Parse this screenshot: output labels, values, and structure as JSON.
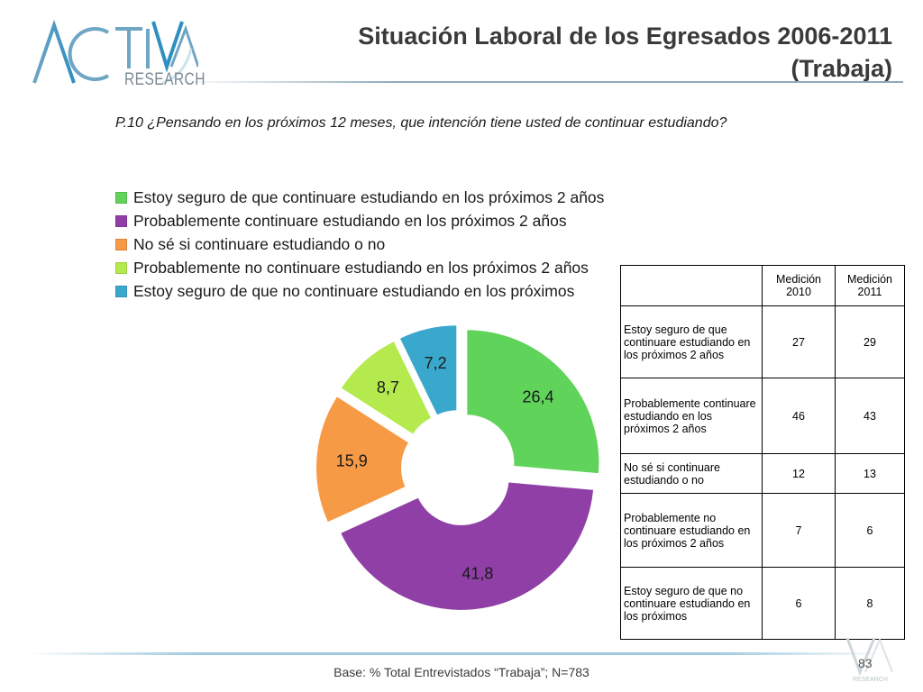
{
  "logo": {
    "wordmark": "RESEARCH"
  },
  "title": "Situación Laboral de los Egresados 2006-2011 (Trabaja)",
  "question": "P.10 ¿Pensando en los próximos 12 meses, que intención tiene usted de continuar estudiando?",
  "footer": "Base: % Total Entrevistados “Trabaja”; N=783",
  "page_number": "83",
  "corner_logo": {
    "wordmark": "RESEARCH"
  },
  "colors": {
    "green": "#5fd35a",
    "purple": "#8f3fa6",
    "orange": "#f79a45",
    "light_green": "#b4ea4d",
    "teal": "#3aa8cc"
  },
  "chart_data": {
    "type": "pie",
    "style": "exploded donut",
    "legend_position": "top",
    "categories": [
      "Estoy seguro de que continuare estudiando en los próximos 2 años",
      "Probablemente continuare estudiando en los próximos 2 años",
      "No sé si continuare estudiando o no",
      "Probablemente no continuare estudiando en los próximos 2 años",
      "Estoy seguro de que no continuare estudiando en los próximos"
    ],
    "values": [
      26.4,
      41.8,
      15.9,
      8.7,
      7.2
    ],
    "value_labels": [
      "26,4",
      "41,8",
      "15,9",
      "8,7",
      "7,2"
    ],
    "colors": [
      "#5fd35a",
      "#8f3fa6",
      "#f79a45",
      "#b4ea4d",
      "#3aa8cc"
    ]
  },
  "table": {
    "headers": [
      "",
      "Medición 2010",
      "Medición 2011"
    ],
    "rows": [
      {
        "label": "Estoy seguro de que continuare estudiando en los próximos 2 años",
        "v2010": "27",
        "v2011": "29"
      },
      {
        "label": "Probablemente continuare estudiando en los próximos 2 años",
        "v2010": "46",
        "v2011": "43"
      },
      {
        "label": "No sé si continuare estudiando o no",
        "v2010": "12",
        "v2011": "13"
      },
      {
        "label": "Probablemente no continuare estudiando en los próximos 2 años",
        "v2010": "7",
        "v2011": "6"
      },
      {
        "label": "Estoy seguro de que no continuare estudiando en los próximos",
        "v2010": "6",
        "v2011": "8"
      }
    ]
  }
}
